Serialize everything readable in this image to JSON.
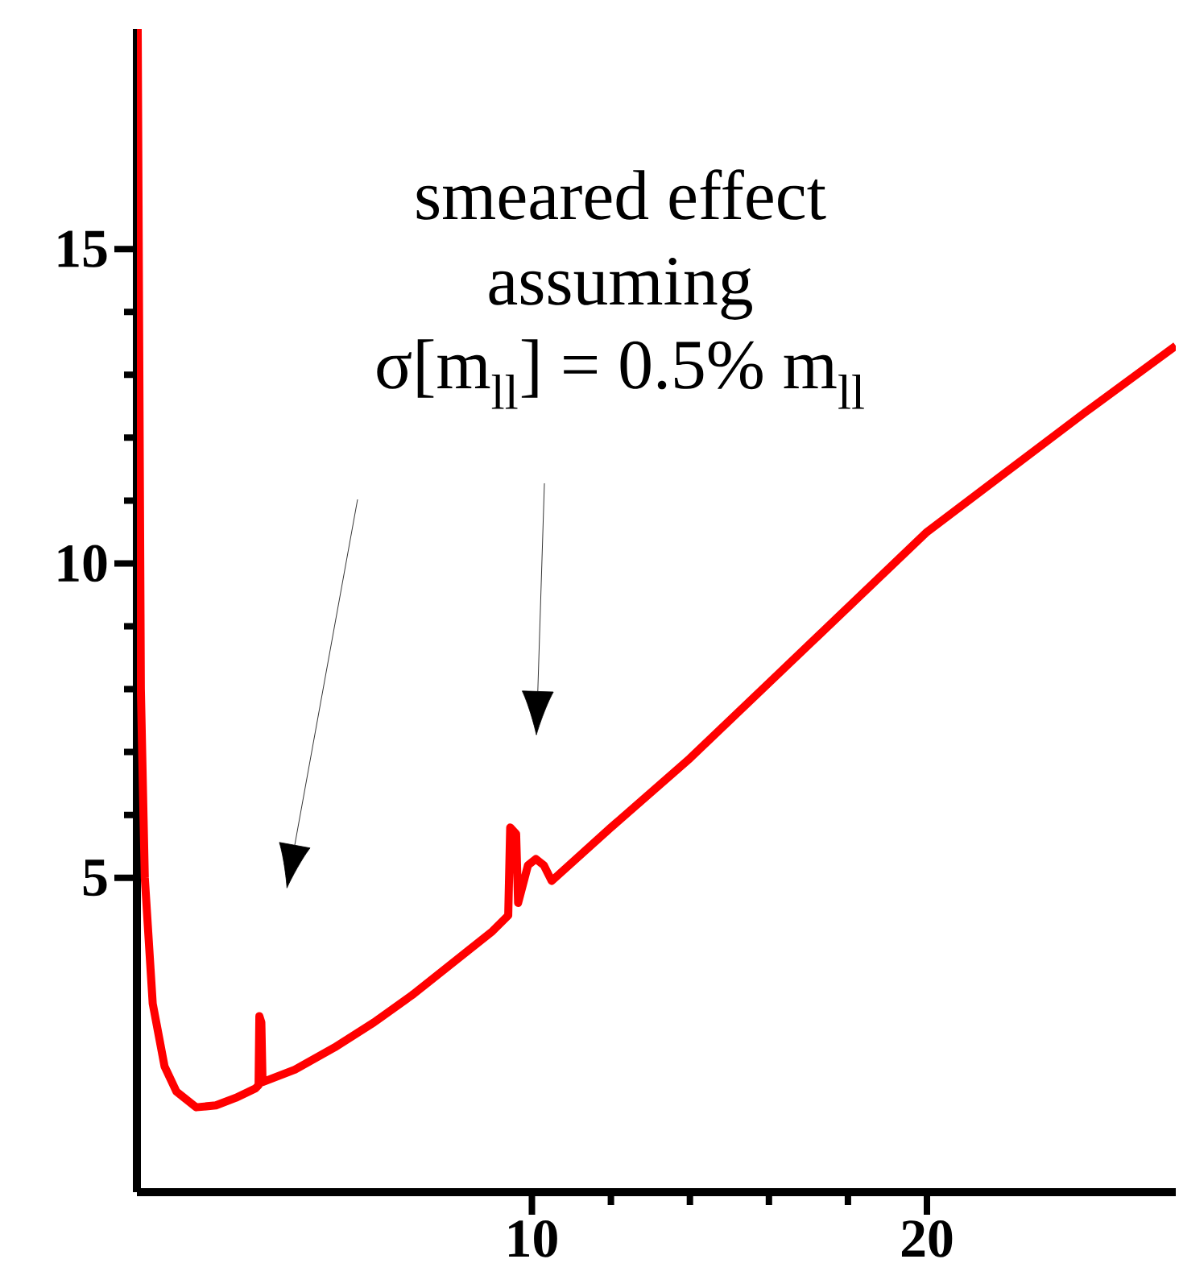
{
  "chart_data": {
    "type": "line",
    "x": [
      0.02,
      0.1,
      0.2,
      0.4,
      0.7,
      1.0,
      1.5,
      2.0,
      2.5,
      3.0,
      3.08,
      3.1,
      3.15,
      3.18,
      4,
      5,
      6,
      7,
      8,
      9,
      9.4,
      9.45,
      9.6,
      9.65,
      9.9,
      10.1,
      10.3,
      10.5,
      12,
      14,
      16,
      18,
      20,
      22,
      24,
      26.3
    ],
    "series": [
      {
        "color": "#ff0000",
        "values": [
          18.5,
          8,
          5,
          3,
          2,
          1.6,
          1.35,
          1.38,
          1.5,
          1.65,
          1.7,
          2.8,
          2.7,
          1.75,
          1.95,
          2.3,
          2.7,
          3.15,
          3.65,
          4.15,
          4.4,
          5.8,
          5.7,
          4.6,
          5.2,
          5.3,
          5.2,
          4.95,
          5.8,
          6.9,
          8.1,
          9.3,
          10.5,
          11.45,
          12.4,
          13.46
        ]
      }
    ],
    "xlim": [
      0,
      26.3
    ],
    "ylim": [
      0,
      18.5
    ],
    "xticks": [
      10,
      20
    ],
    "yticks": [
      5,
      10,
      15
    ],
    "grid": false,
    "marker": "none",
    "line_style": "solid",
    "annotations": [
      "smeared effect",
      "assuming",
      "σ[m$_{ll}$] = 0.5% m$_{ll}$"
    ]
  }
}
